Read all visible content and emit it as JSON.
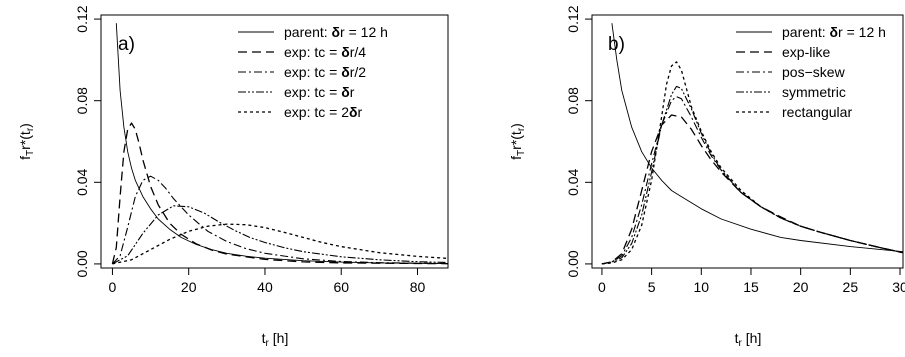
{
  "chart_data": [
    {
      "type": "line",
      "panel_label": "a)",
      "xlabel": "t_r [h]",
      "ylabel": "f_Tr*(t_r)",
      "xlim": [
        -3,
        88
      ],
      "ylim": [
        -0.002,
        0.122
      ],
      "xticks": [
        0,
        20,
        40,
        60,
        80
      ],
      "yticks": [
        "0.00",
        "0.04",
        "0.08",
        "0.12"
      ],
      "grid": false,
      "legend_position": "top-right",
      "series": [
        {
          "name": "parent: δr = 12 h",
          "dash": "solid",
          "width": 0.9,
          "x": [
            1,
            2,
            3,
            4,
            5,
            6,
            8,
            10,
            12,
            15,
            18,
            22,
            26,
            30,
            35,
            40,
            50,
            60,
            70,
            80,
            88
          ],
          "y": [
            0.118,
            0.085,
            0.067,
            0.055,
            0.047,
            0.041,
            0.033,
            0.027,
            0.022,
            0.017,
            0.013,
            0.0095,
            0.007,
            0.0052,
            0.0038,
            0.0028,
            0.0016,
            0.0009,
            0.0005,
            0.0003,
            0.0002
          ]
        },
        {
          "name": "exp: tc = δr/4",
          "dash": "9,5",
          "width": 1.3,
          "x": [
            0,
            1,
            2,
            3,
            4,
            5,
            6,
            7,
            8,
            10,
            12,
            15,
            18,
            22,
            26,
            30,
            40,
            50,
            60,
            88
          ],
          "y": [
            0,
            0.008,
            0.033,
            0.055,
            0.066,
            0.069,
            0.066,
            0.059,
            0.051,
            0.038,
            0.029,
            0.02,
            0.0145,
            0.0098,
            0.0068,
            0.0048,
            0.0022,
            0.001,
            0.0005,
            0.0001
          ]
        },
        {
          "name": "exp: tc = δr/2",
          "dash": "8,3,2,3",
          "width": 1.1,
          "x": [
            0,
            2,
            4,
            6,
            8,
            10,
            12,
            14,
            16,
            20,
            25,
            30,
            35,
            40,
            50,
            60,
            70,
            88
          ],
          "y": [
            0,
            0.004,
            0.018,
            0.033,
            0.041,
            0.043,
            0.041,
            0.037,
            0.032,
            0.024,
            0.016,
            0.011,
            0.0075,
            0.0052,
            0.0025,
            0.0012,
            0.0006,
            0.0002
          ]
        },
        {
          "name": "exp: tc = δr",
          "dash": "8,2,2,2,2,2",
          "width": 1.1,
          "x": [
            0,
            4,
            8,
            12,
            16,
            20,
            24,
            28,
            32,
            36,
            40,
            45,
            50,
            60,
            70,
            80,
            88
          ],
          "y": [
            0,
            0.004,
            0.015,
            0.024,
            0.0285,
            0.028,
            0.025,
            0.0205,
            0.0165,
            0.013,
            0.0105,
            0.008,
            0.006,
            0.0035,
            0.002,
            0.0011,
            0.0007
          ]
        },
        {
          "name": "exp: tc = 2δr",
          "dash": "3,3",
          "width": 1.3,
          "x": [
            0,
            5,
            10,
            15,
            20,
            25,
            30,
            35,
            40,
            45,
            50,
            55,
            60,
            70,
            80,
            88
          ],
          "y": [
            0,
            0.002,
            0.007,
            0.012,
            0.016,
            0.0185,
            0.0195,
            0.0192,
            0.0178,
            0.0155,
            0.013,
            0.0105,
            0.0085,
            0.0055,
            0.0037,
            0.0027
          ]
        }
      ]
    },
    {
      "type": "line",
      "panel_label": "b)",
      "xlabel": "t_r [h]",
      "ylabel": "f_Tr*(t_r)",
      "xlim": [
        -1,
        30.3
      ],
      "ylim": [
        -0.002,
        0.122
      ],
      "xticks": [
        0,
        5,
        10,
        15,
        20,
        25,
        30
      ],
      "yticks": [
        "0.00",
        "0.04",
        "0.08",
        "0.12"
      ],
      "grid": false,
      "legend_position": "top-right",
      "series": [
        {
          "name": "parent: δr = 12 h",
          "dash": "solid",
          "width": 0.9,
          "x": [
            1,
            1.5,
            2,
            3,
            4,
            5,
            6,
            7,
            8,
            10,
            12,
            15,
            18,
            20,
            25,
            30.3
          ],
          "y": [
            0.118,
            0.1,
            0.085,
            0.067,
            0.055,
            0.047,
            0.041,
            0.036,
            0.033,
            0.027,
            0.022,
            0.017,
            0.013,
            0.0115,
            0.0085,
            0.006
          ]
        },
        {
          "name": "exp-like",
          "dash": "9,5",
          "width": 1.3,
          "x": [
            0,
            1,
            2,
            3,
            4,
            5,
            6,
            7,
            8,
            9,
            10,
            11,
            12,
            14,
            16,
            18,
            20,
            22,
            25,
            28,
            30.3
          ],
          "y": [
            0,
            0.001,
            0.005,
            0.017,
            0.036,
            0.055,
            0.068,
            0.073,
            0.072,
            0.066,
            0.058,
            0.051,
            0.045,
            0.035,
            0.028,
            0.023,
            0.0185,
            0.0155,
            0.0115,
            0.008,
            0.0055
          ]
        },
        {
          "name": "pos−skew",
          "dash": "8,3,2,3",
          "width": 1.1,
          "x": [
            0,
            1,
            2,
            3,
            4,
            5,
            6,
            7,
            7.5,
            8,
            9,
            10,
            11,
            12,
            14,
            16,
            18,
            20,
            22,
            25,
            28,
            30.3
          ],
          "y": [
            0,
            0.001,
            0.004,
            0.013,
            0.029,
            0.049,
            0.068,
            0.08,
            0.082,
            0.081,
            0.072,
            0.062,
            0.053,
            0.046,
            0.035,
            0.028,
            0.0225,
            0.0185,
            0.0155,
            0.0115,
            0.008,
            0.0055
          ]
        },
        {
          "name": "symmetric",
          "dash": "8,2,2,2,2,2",
          "width": 1.1,
          "x": [
            0,
            1,
            2,
            3,
            4,
            5,
            6,
            7,
            7.5,
            8,
            9,
            10,
            11,
            12,
            14,
            16,
            18,
            20,
            22,
            25,
            28,
            30.3
          ],
          "y": [
            0,
            0.001,
            0.003,
            0.01,
            0.024,
            0.045,
            0.068,
            0.083,
            0.087,
            0.086,
            0.076,
            0.064,
            0.054,
            0.046,
            0.035,
            0.028,
            0.0225,
            0.0185,
            0.0155,
            0.0115,
            0.008,
            0.0055
          ]
        },
        {
          "name": "rectangular",
          "dash": "3,3",
          "width": 1.3,
          "x": [
            0,
            1,
            2,
            3,
            4,
            5,
            6,
            6.5,
            7,
            7.5,
            8,
            8.5,
            9,
            10,
            11,
            12,
            14,
            16,
            18,
            20,
            22,
            25,
            28,
            30.3
          ],
          "y": [
            0,
            0.0005,
            0.002,
            0.007,
            0.019,
            0.041,
            0.072,
            0.088,
            0.097,
            0.099,
            0.095,
            0.086,
            0.077,
            0.065,
            0.055,
            0.047,
            0.036,
            0.028,
            0.0225,
            0.0185,
            0.0155,
            0.0115,
            0.008,
            0.0055
          ]
        }
      ]
    }
  ]
}
